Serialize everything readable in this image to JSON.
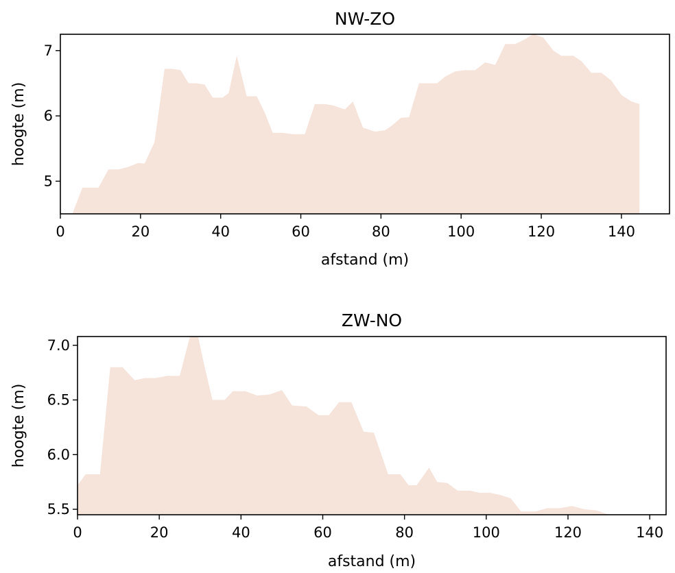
{
  "chart_data": [
    {
      "type": "area",
      "title": "NW-ZO",
      "xlabel": "afstand (m)",
      "ylabel": "hoogte (m)",
      "xlim": [
        0,
        152
      ],
      "ylim": [
        4.5,
        7.25
      ],
      "xticks": [
        0,
        20,
        40,
        60,
        80,
        100,
        120,
        140
      ],
      "yticks": [
        5,
        6,
        7
      ],
      "grid": false,
      "fill_color": "#f6e3da",
      "x": [
        3,
        5.5,
        8,
        9.5,
        12,
        14.5,
        17,
        19.5,
        21,
        23.5,
        26,
        28,
        30,
        32,
        34,
        36,
        38,
        40.5,
        42,
        44,
        46.5,
        49,
        51,
        53,
        55.5,
        58,
        61,
        63.5,
        66,
        68,
        71,
        73,
        75.5,
        78.5,
        81,
        82.5,
        85,
        87,
        89.5,
        91.5,
        94,
        96,
        98.5,
        101,
        103.5,
        106,
        108.5,
        111,
        113.5,
        115.5,
        118,
        120.5,
        123,
        125,
        128,
        130,
        132.5,
        135,
        137.5,
        140,
        142.5,
        144.5
      ],
      "values": [
        4.5,
        4.9,
        4.9,
        4.9,
        5.18,
        5.18,
        5.22,
        5.28,
        5.27,
        5.6,
        6.72,
        6.72,
        6.7,
        6.5,
        6.5,
        6.48,
        6.28,
        6.28,
        6.35,
        6.92,
        6.3,
        6.3,
        6.05,
        5.74,
        5.74,
        5.72,
        5.72,
        6.18,
        6.18,
        6.16,
        6.1,
        6.22,
        5.82,
        5.76,
        5.78,
        5.84,
        5.97,
        5.98,
        6.5,
        6.5,
        6.5,
        6.6,
        6.68,
        6.7,
        6.7,
        6.82,
        6.78,
        7.1,
        7.1,
        7.16,
        7.25,
        7.2,
        7.0,
        6.92,
        6.92,
        6.84,
        6.66,
        6.66,
        6.54,
        6.32,
        6.22,
        6.18
      ]
    },
    {
      "type": "area",
      "title": "ZW-NO",
      "xlabel": "afstand (m)",
      "ylabel": "hoogte (m)",
      "xlim": [
        0,
        144
      ],
      "ylim": [
        5.45,
        7.08
      ],
      "xticks": [
        0,
        20,
        40,
        60,
        80,
        100,
        120,
        140
      ],
      "yticks": [
        5.5,
        6.0,
        6.5,
        7.0
      ],
      "ytick_labels": [
        "5.5",
        "6.0",
        "6.5",
        "7.0"
      ],
      "grid": false,
      "fill_color": "#f6e3da",
      "x": [
        0,
        2,
        4,
        5.5,
        8,
        11,
        14,
        16.5,
        19,
        22,
        25,
        27.5,
        29.5,
        31,
        33,
        36,
        38,
        41,
        44,
        47,
        50,
        52.5,
        56,
        59,
        61.5,
        64,
        67,
        70,
        72.5,
        76,
        79,
        81,
        83,
        86,
        88,
        90.5,
        93,
        96,
        98.5,
        101,
        103.5,
        106,
        108.5,
        112,
        115,
        118,
        121,
        124,
        127,
        130
      ],
      "values": [
        5.72,
        5.82,
        5.82,
        5.82,
        6.8,
        6.8,
        6.68,
        6.7,
        6.7,
        6.72,
        6.72,
        7.08,
        7.08,
        6.82,
        6.5,
        6.5,
        6.58,
        6.58,
        6.54,
        6.55,
        6.59,
        6.45,
        6.44,
        6.36,
        6.36,
        6.48,
        6.48,
        6.21,
        6.2,
        5.82,
        5.82,
        5.72,
        5.72,
        5.88,
        5.75,
        5.74,
        5.67,
        5.67,
        5.65,
        5.65,
        5.63,
        5.6,
        5.48,
        5.48,
        5.51,
        5.51,
        5.53,
        5.5,
        5.49,
        5.45
      ]
    }
  ]
}
